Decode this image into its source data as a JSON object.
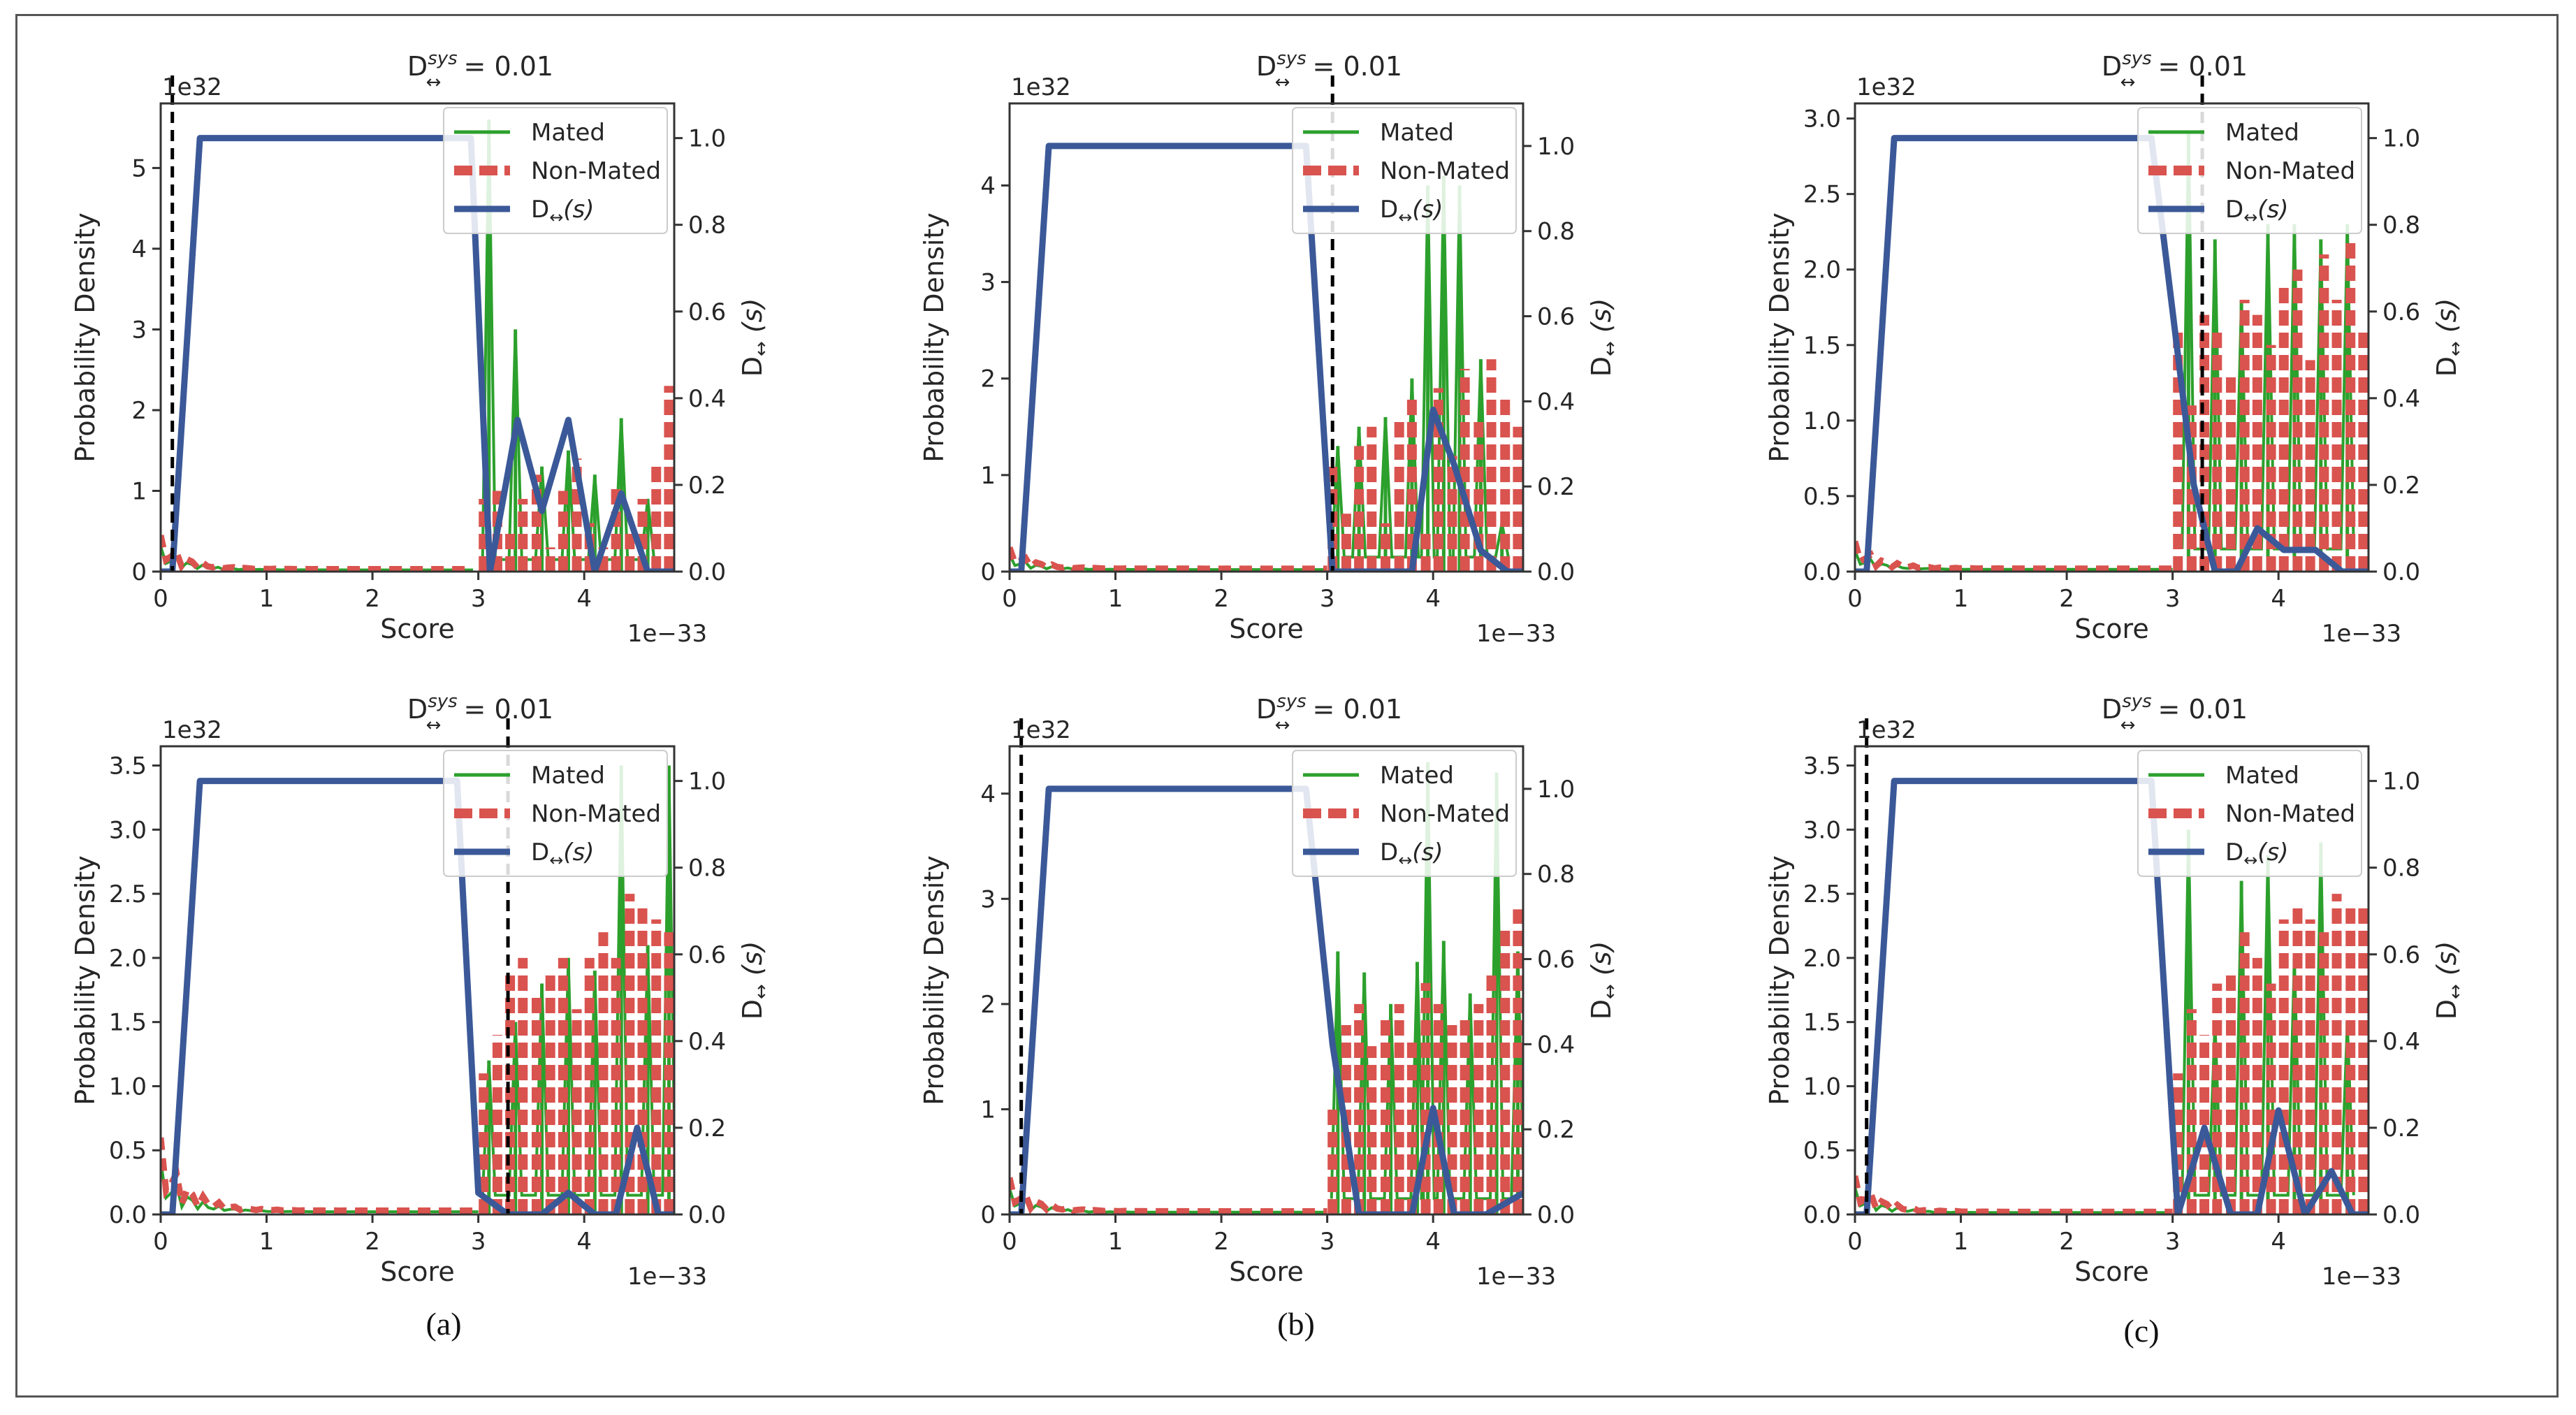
{
  "figure": {
    "captions": [
      "(a)",
      "(b)",
      "(c)"
    ]
  },
  "shared": {
    "title_main": "D",
    "title_sup": "sys",
    "title_sub": "↔",
    "title_suffix": " = 0.01",
    "xlabel": "Score",
    "ylabel": "Probability Density",
    "y2label": "D",
    "y2label_sub": "↔",
    "y2label_tail": "(s)",
    "x_offset_text": "1e−33",
    "y_offset_text": "1e32",
    "legend": [
      "Mated",
      "Non-Mated",
      "D",
      "↔",
      "(s)"
    ],
    "colors": {
      "mated": "#2ca02c",
      "nonmated": "#d9534f",
      "dscore": "#3b5998",
      "threshold": "#000000",
      "axis": "#333333"
    }
  },
  "chart_data": [
    {
      "id": "a-top",
      "type": "line",
      "title": "D↔sys = 0.01",
      "xlabel": "Score",
      "ylabel": "Probability Density",
      "y2label": "D↔(s)",
      "xlim": [
        0,
        4.85
      ],
      "ylim": [
        0,
        5.8
      ],
      "y2lim": [
        0,
        1.08
      ],
      "xticks": [
        0,
        1,
        2,
        3,
        4
      ],
      "yticks": [
        0,
        1,
        2,
        3,
        4,
        5
      ],
      "y2ticks": [
        0.0,
        0.2,
        0.4,
        0.6,
        0.8,
        1.0
      ],
      "threshold": 0.11,
      "dscore": {
        "x": [
          0,
          0.11,
          0.37,
          2.93,
          3.11,
          3.37,
          3.6,
          3.85,
          4.1,
          4.35,
          4.6,
          4.85
        ],
        "y": [
          0.0,
          0.0,
          1.0,
          1.0,
          0.0,
          0.35,
          0.14,
          0.35,
          0.0,
          0.18,
          0.0,
          0.0
        ]
      },
      "mated_spikes": {
        "x": [
          3.1,
          3.35,
          3.6,
          3.85,
          4.1,
          4.35,
          4.6
        ],
        "y": [
          5.6,
          3.0,
          1.3,
          1.5,
          1.2,
          1.9,
          0.9
        ]
      },
      "nonmated_spikes": {
        "x": [
          3.05,
          3.18,
          3.3,
          3.42,
          3.55,
          3.68,
          3.8,
          3.93,
          4.05,
          4.18,
          4.3,
          4.43,
          4.55,
          4.68,
          4.8
        ],
        "y": [
          0.9,
          1.0,
          0.5,
          0.9,
          1.2,
          0.3,
          1.0,
          1.4,
          0.6,
          0.3,
          1.1,
          0.5,
          0.9,
          1.3,
          2.3
        ]
      },
      "noise": {
        "x0": 0.0,
        "x1": 2.95,
        "h0": 0.45,
        "h1": 0.03
      }
    },
    {
      "id": "b-top",
      "type": "line",
      "title": "D↔sys = 0.01",
      "xlabel": "Score",
      "ylabel": "Probability Density",
      "y2label": "D↔(s)",
      "xlim": [
        0,
        4.85
      ],
      "ylim": [
        0,
        4.85
      ],
      "y2lim": [
        0,
        1.1
      ],
      "xticks": [
        0,
        1,
        2,
        3,
        4
      ],
      "yticks": [
        0,
        1,
        2,
        3,
        4
      ],
      "y2ticks": [
        0.0,
        0.2,
        0.4,
        0.6,
        0.8,
        1.0
      ],
      "threshold": 3.05,
      "dscore": {
        "x": [
          0,
          0.11,
          0.37,
          2.8,
          3.05,
          3.8,
          4.0,
          4.2,
          4.45,
          4.7,
          4.85
        ],
        "y": [
          0.0,
          0.0,
          1.0,
          1.0,
          0.0,
          0.0,
          0.38,
          0.25,
          0.05,
          0.0,
          0.0
        ]
      },
      "mated_spikes": {
        "x": [
          3.1,
          3.3,
          3.55,
          3.8,
          3.95,
          4.1,
          4.25,
          4.45,
          4.65
        ],
        "y": [
          1.3,
          1.5,
          1.6,
          2.0,
          4.0,
          4.1,
          4.0,
          2.2,
          0.5
        ]
      },
      "nonmated_spikes": {
        "x": [
          3.05,
          3.18,
          3.3,
          3.42,
          3.55,
          3.68,
          3.8,
          3.93,
          4.05,
          4.18,
          4.3,
          4.43,
          4.55,
          4.68,
          4.8
        ],
        "y": [
          1.1,
          0.6,
          1.3,
          1.5,
          0.5,
          1.6,
          1.8,
          0.4,
          1.9,
          1.2,
          2.1,
          1.6,
          2.2,
          1.8,
          1.5
        ]
      },
      "noise": {
        "x0": 0.0,
        "x1": 3.0,
        "h0": 0.25,
        "h1": 0.03
      }
    },
    {
      "id": "c-top",
      "type": "line",
      "title": "D↔sys = 0.01",
      "xlabel": "Score",
      "ylabel": "Probability Density",
      "y2label": "D↔(s)",
      "xlim": [
        0,
        4.85
      ],
      "ylim": [
        0,
        3.1
      ],
      "y2lim": [
        0,
        1.08
      ],
      "xticks": [
        0,
        1,
        2,
        3,
        4
      ],
      "yticks": [
        0.0,
        0.5,
        1.0,
        1.5,
        2.0,
        2.5,
        3.0
      ],
      "y2ticks": [
        0.0,
        0.2,
        0.4,
        0.6,
        0.8,
        1.0
      ],
      "threshold": 3.28,
      "dscore": {
        "x": [
          0,
          0.11,
          0.37,
          2.8,
          3.05,
          3.2,
          3.4,
          3.6,
          3.8,
          4.05,
          4.35,
          4.6,
          4.85
        ],
        "y": [
          0.0,
          0.0,
          1.0,
          1.0,
          0.5,
          0.2,
          0.0,
          0.0,
          0.1,
          0.05,
          0.05,
          0.0,
          0.0
        ]
      },
      "mated_spikes": {
        "x": [
          3.15,
          3.4,
          3.65,
          3.9,
          4.15,
          4.4,
          4.65
        ],
        "y": [
          2.9,
          2.2,
          1.8,
          2.3,
          2.3,
          2.2,
          2.3
        ]
      },
      "nonmated_spikes": {
        "x": [
          3.05,
          3.18,
          3.3,
          3.42,
          3.55,
          3.68,
          3.8,
          3.93,
          4.05,
          4.18,
          4.3,
          4.43,
          4.55,
          4.68,
          4.8
        ],
        "y": [
          1.6,
          1.1,
          1.7,
          1.6,
          1.3,
          1.8,
          1.7,
          1.5,
          1.9,
          2.0,
          1.4,
          2.1,
          1.8,
          2.2,
          1.6
        ]
      },
      "noise": {
        "x0": 0.0,
        "x1": 3.0,
        "h0": 0.2,
        "h1": 0.02
      }
    },
    {
      "id": "a-bottom",
      "type": "line",
      "title": "D↔sys = 0.01",
      "xlabel": "Score",
      "ylabel": "Probability Density",
      "y2label": "D↔(s)",
      "xlim": [
        0,
        4.85
      ],
      "ylim": [
        0,
        3.65
      ],
      "y2lim": [
        0,
        1.08
      ],
      "xticks": [
        0,
        1,
        2,
        3,
        4
      ],
      "yticks": [
        0.0,
        0.5,
        1.0,
        1.5,
        2.0,
        2.5,
        3.0,
        3.5
      ],
      "y2ticks": [
        0.0,
        0.2,
        0.4,
        0.6,
        0.8,
        1.0
      ],
      "threshold": 3.28,
      "dscore": {
        "x": [
          0,
          0.11,
          0.37,
          2.8,
          3.0,
          3.28,
          3.6,
          3.85,
          4.1,
          4.3,
          4.5,
          4.7,
          4.85
        ],
        "y": [
          0.0,
          0.0,
          1.0,
          1.0,
          0.05,
          0.0,
          0.0,
          0.05,
          0.0,
          0.0,
          0.2,
          0.0,
          0.0
        ]
      },
      "mated_spikes": {
        "x": [
          3.1,
          3.35,
          3.6,
          3.85,
          4.1,
          4.35,
          4.6,
          4.8
        ],
        "y": [
          1.2,
          1.5,
          1.8,
          2.0,
          1.9,
          3.5,
          2.1,
          3.5
        ]
      },
      "nonmated_spikes": {
        "x": [
          3.05,
          3.18,
          3.3,
          3.42,
          3.55,
          3.68,
          3.8,
          3.93,
          4.05,
          4.18,
          4.3,
          4.43,
          4.55,
          4.68,
          4.8
        ],
        "y": [
          1.1,
          1.4,
          1.9,
          2.0,
          1.7,
          1.9,
          2.0,
          1.6,
          2.0,
          2.2,
          2.0,
          2.5,
          2.4,
          2.3,
          2.2
        ]
      },
      "noise": {
        "x0": 0.0,
        "x1": 3.0,
        "h0": 0.6,
        "h1": 0.03
      }
    },
    {
      "id": "b-bottom",
      "type": "line",
      "title": "D↔sys = 0.01",
      "xlabel": "Score",
      "ylabel": "Probability Density",
      "y2label": "D↔(s)",
      "xlim": [
        0,
        4.85
      ],
      "ylim": [
        0,
        4.45
      ],
      "y2lim": [
        0,
        1.1
      ],
      "xticks": [
        0,
        1,
        2,
        3,
        4
      ],
      "yticks": [
        0,
        1,
        2,
        3,
        4
      ],
      "y2ticks": [
        0.0,
        0.2,
        0.4,
        0.6,
        0.8,
        1.0
      ],
      "threshold": 0.11,
      "dscore": {
        "x": [
          0,
          0.11,
          0.37,
          2.8,
          3.05,
          3.3,
          3.8,
          4.0,
          4.2,
          4.5,
          4.85
        ],
        "y": [
          0.0,
          0.0,
          1.0,
          1.0,
          0.4,
          0.0,
          0.0,
          0.25,
          0.0,
          0.0,
          0.05
        ]
      },
      "mated_spikes": {
        "x": [
          3.1,
          3.35,
          3.6,
          3.85,
          3.95,
          4.1,
          4.35,
          4.6,
          4.8
        ],
        "y": [
          2.5,
          2.3,
          2.0,
          2.4,
          4.3,
          2.6,
          2.1,
          4.2,
          2.5
        ]
      },
      "nonmated_spikes": {
        "x": [
          3.05,
          3.18,
          3.3,
          3.42,
          3.55,
          3.68,
          3.8,
          3.93,
          4.05,
          4.18,
          4.3,
          4.43,
          4.55,
          4.68,
          4.8
        ],
        "y": [
          1.0,
          1.8,
          2.0,
          1.6,
          1.9,
          2.0,
          1.7,
          2.2,
          2.0,
          1.8,
          1.9,
          2.0,
          2.3,
          2.7,
          2.9
        ]
      },
      "noise": {
        "x0": 0.0,
        "x1": 3.0,
        "h0": 0.35,
        "h1": 0.03
      }
    },
    {
      "id": "c-bottom",
      "type": "line",
      "title": "D↔sys = 0.01",
      "xlabel": "Score",
      "ylabel": "Probability Density",
      "y2label": "D↔(s)",
      "xlim": [
        0,
        4.85
      ],
      "ylim": [
        0,
        3.65
      ],
      "y2lim": [
        0,
        1.08
      ],
      "xticks": [
        0,
        1,
        2,
        3,
        4
      ],
      "yticks": [
        0.0,
        0.5,
        1.0,
        1.5,
        2.0,
        2.5,
        3.0,
        3.5
      ],
      "y2ticks": [
        0.0,
        0.2,
        0.4,
        0.6,
        0.8,
        1.0
      ],
      "threshold": 0.11,
      "dscore": {
        "x": [
          0,
          0.11,
          0.37,
          2.8,
          3.05,
          3.3,
          3.55,
          3.8,
          4.0,
          4.25,
          4.5,
          4.7,
          4.85
        ],
        "y": [
          0.0,
          0.0,
          1.0,
          1.0,
          0.0,
          0.2,
          0.0,
          0.0,
          0.24,
          0.0,
          0.1,
          0.0,
          0.0
        ]
      },
      "mated_spikes": {
        "x": [
          3.15,
          3.4,
          3.65,
          3.9,
          4.15,
          4.4,
          4.65
        ],
        "y": [
          3.0,
          1.5,
          2.6,
          2.8,
          2.0,
          2.9,
          1.5
        ]
      },
      "nonmated_spikes": {
        "x": [
          3.05,
          3.18,
          3.3,
          3.42,
          3.55,
          3.68,
          3.8,
          3.93,
          4.05,
          4.18,
          4.3,
          4.43,
          4.55,
          4.68,
          4.8
        ],
        "y": [
          1.1,
          1.6,
          1.4,
          1.8,
          1.9,
          2.2,
          2.0,
          1.8,
          2.3,
          2.4,
          2.3,
          2.2,
          2.5,
          2.4,
          2.4
        ]
      },
      "noise": {
        "x0": 0.0,
        "x1": 3.0,
        "h0": 0.3,
        "h1": 0.02
      }
    }
  ]
}
